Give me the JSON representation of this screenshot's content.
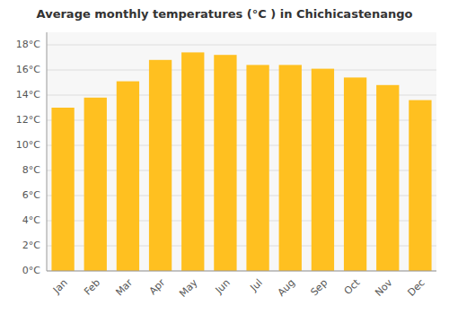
{
  "chart_data": {
    "type": "bar",
    "title": "Average monthly temperatures (°C ) in Chichicastenango",
    "categories": [
      "Jan",
      "Feb",
      "Mar",
      "Apr",
      "May",
      "Jun",
      "Jul",
      "Aug",
      "Sep",
      "Oct",
      "Nov",
      "Dec"
    ],
    "values": [
      13.0,
      13.8,
      15.1,
      16.8,
      17.4,
      17.2,
      16.4,
      16.4,
      16.1,
      15.4,
      14.8,
      13.6
    ],
    "color": "#FFC020",
    "ylim": [
      0,
      19
    ],
    "yticks": [
      {
        "value": 0,
        "label": "0°C"
      },
      {
        "value": 2,
        "label": "2°C"
      },
      {
        "value": 4,
        "label": "4°C"
      },
      {
        "value": 6,
        "label": "6°C"
      },
      {
        "value": 8,
        "label": "8°C"
      },
      {
        "value": 10,
        "label": "10°C"
      },
      {
        "value": 12,
        "label": "12°C"
      },
      {
        "value": 14,
        "label": "14°C"
      },
      {
        "value": 16,
        "label": "16°C"
      },
      {
        "value": 18,
        "label": "18°C"
      }
    ],
    "grid": true
  }
}
